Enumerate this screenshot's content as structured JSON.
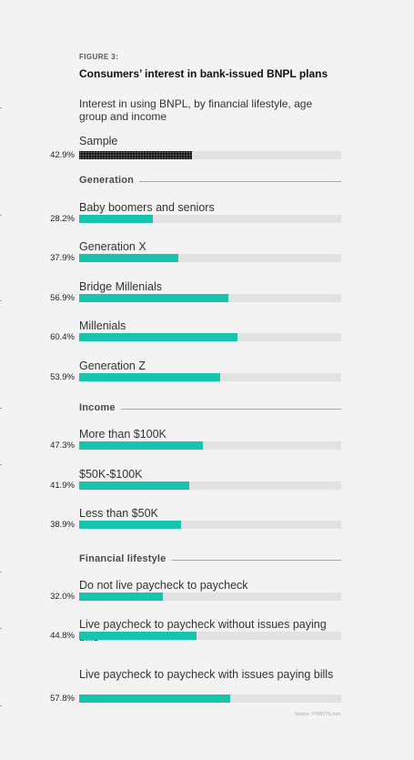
{
  "figure_label": "FIGURE 3:",
  "title": "Consumers’ interest in bank-issued BNPL plans",
  "subtitle": "Interest in using BNPL, by financial lifestyle, age group and income",
  "source": "Source: PYMNTS.com",
  "colors": {
    "bar": "#17c4ad",
    "sample_bar": "#1b1b1b",
    "track": "#e2e2e2",
    "background": "#f3f3f3"
  },
  "chart_data": {
    "type": "bar",
    "orientation": "horizontal",
    "xlim": [
      0,
      100
    ],
    "unit": "%",
    "sample": {
      "label": "Sample",
      "value": 42.9,
      "display": "42.9%"
    },
    "sections": [
      {
        "name": "Generation",
        "rows": [
          {
            "label": "Baby boomers and seniors",
            "value": 28.2,
            "display": "28.2%"
          },
          {
            "label": "Generation X",
            "value": 37.9,
            "display": "37.9%"
          },
          {
            "label": "Bridge Millenials",
            "value": 56.9,
            "display": "56.9%"
          },
          {
            "label": "Millenials",
            "value": 60.4,
            "display": "60.4%"
          },
          {
            "label": "Generation Z",
            "value": 53.9,
            "display": "53.9%"
          }
        ]
      },
      {
        "name": "Income",
        "rows": [
          {
            "label": "More than $100K",
            "value": 47.3,
            "display": "47.3%"
          },
          {
            "label": "$50K-$100K",
            "value": 41.9,
            "display": "41.9%"
          },
          {
            "label": "Less than $50K",
            "value": 38.9,
            "display": "38.9%"
          }
        ]
      },
      {
        "name": "Financial lifestyle",
        "rows": [
          {
            "label": "Do not live paycheck to paycheck",
            "value": 32.0,
            "display": "32.0%"
          },
          {
            "label": "Live paycheck to paycheck without issues paying bills",
            "value": 44.8,
            "display": "44.8%"
          },
          {
            "label": "Live paycheck to paycheck with issues paying bills",
            "value": 57.8,
            "display": "57.8%"
          }
        ]
      }
    ]
  }
}
